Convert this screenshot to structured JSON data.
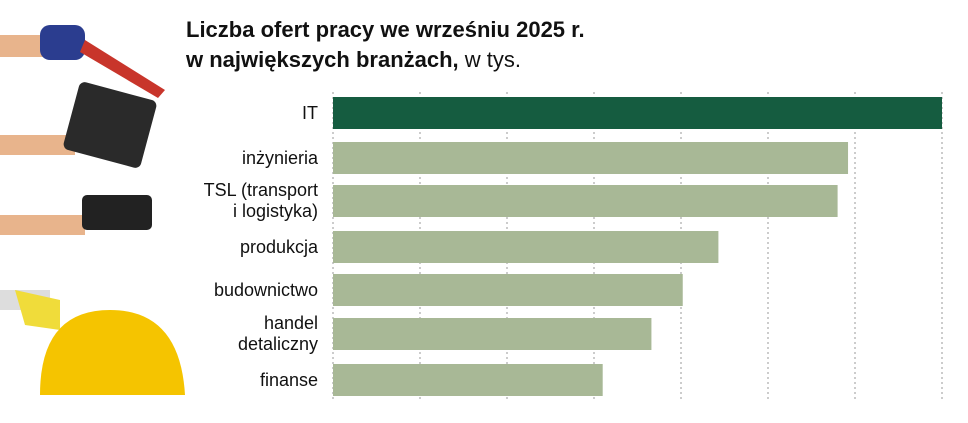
{
  "chart_data": {
    "type": "bar",
    "orientation": "horizontal",
    "title": [
      "Liczba ofert pracy we wrześniu 2025 r.",
      "w największych branżach,"
    ],
    "unit": "w tys.",
    "categories": [
      "IT",
      "inżynieria",
      "TSL (transport\ni logistyka)",
      "produkcja",
      "budownictwo",
      "handel\ndetaliczny",
      "finanse"
    ],
    "values": [
      7,
      5.92,
      5.8,
      4.43,
      4.02,
      3.66,
      3.1
    ],
    "colors": [
      "#155c40",
      "#a8b896",
      "#a8b896",
      "#a8b896",
      "#a8b896",
      "#a8b896",
      "#a8b896"
    ],
    "xlim": [
      0,
      7
    ],
    "xticks": [
      0,
      1,
      2,
      3,
      4,
      5,
      6,
      7
    ],
    "grid": true
  }
}
